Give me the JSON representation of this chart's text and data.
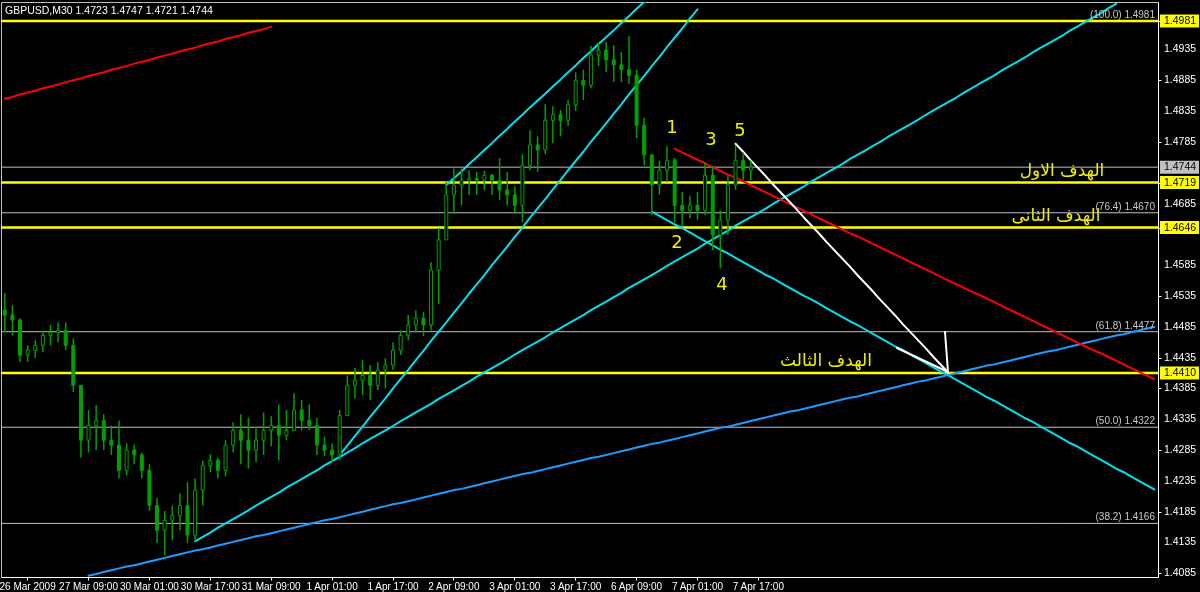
{
  "chart_data": {
    "type": "candlestick",
    "title": "GBPUSD,M30 1.4723 1.4747 1.4721 1.4744",
    "color": "#00a000",
    "categories": [
      null,
      null,
      null,
      "26 Mar 2009",
      null,
      null,
      null,
      null,
      null,
      null,
      null,
      "27 Mar 09:00",
      null,
      null,
      null,
      null,
      null,
      null,
      null,
      "30 Mar 01:00",
      null,
      null,
      null,
      null,
      null,
      null,
      null,
      "30 Mar 17:00",
      null,
      null,
      null,
      null,
      null,
      null,
      null,
      "31 Mar 09:00",
      null,
      null,
      null,
      null,
      null,
      null,
      null,
      "1 Apr 01:00",
      null,
      null,
      null,
      null,
      null,
      null,
      null,
      "1 Apr 17:00",
      null,
      null,
      null,
      null,
      null,
      null,
      null,
      "2 Apr 09:00",
      null,
      null,
      null,
      null,
      null,
      null,
      null,
      "3 Apr 01:00",
      null,
      null,
      null,
      null,
      null,
      null,
      null,
      "3 Apr 17:00",
      null,
      null,
      null,
      null,
      null,
      null,
      null,
      "6 Apr 09:00",
      null,
      null,
      null,
      null,
      null,
      null,
      null,
      "7 Apr 01:00",
      null,
      null,
      null,
      null,
      null,
      null,
      null,
      "7 Apr 17:00",
      null,
      null,
      null,
      null,
      null,
      null,
      null,
      null,
      null,
      null,
      null,
      null,
      null,
      null,
      null,
      null,
      null,
      null,
      null,
      null,
      null,
      null,
      null,
      null,
      null,
      null,
      null,
      null,
      null,
      null,
      null,
      null,
      null,
      null,
      null,
      null,
      null,
      null,
      null,
      null,
      null,
      null,
      null,
      null,
      null,
      null,
      null,
      null,
      null,
      null,
      null,
      null
    ],
    "ylim": [
      1.4079,
      1.5012
    ],
    "yticks": [
      1.4085,
      1.4135,
      1.4185,
      1.4235,
      1.4285,
      1.4335,
      1.4385,
      {
        "value": 1.441,
        "label": "1.4410"
      },
      1.4435,
      1.4485,
      1.4535,
      1.4585,
      1.4646,
      1.4685,
      1.4719,
      1.4744,
      1.4785,
      1.4835,
      1.4885,
      1.4935,
      1.4981
    ],
    "ohlc": [
      [
        1.4512,
        1.454,
        1.4476,
        1.4504
      ],
      [
        1.4504,
        1.452,
        1.4471,
        1.4496
      ],
      [
        1.4496,
        1.4499,
        1.4428,
        1.4439
      ],
      [
        1.4439,
        1.4455,
        1.4428,
        1.4447
      ],
      [
        1.4447,
        1.4463,
        1.4434,
        1.4455
      ],
      [
        1.4455,
        1.4479,
        1.4444,
        1.4471
      ],
      [
        1.4471,
        1.4488,
        1.4455,
        1.4476
      ],
      [
        1.4476,
        1.4492,
        1.446,
        1.4479
      ],
      [
        1.4479,
        1.4492,
        1.4447,
        1.4455
      ],
      [
        1.4455,
        1.4466,
        1.4379,
        1.439
      ],
      [
        1.439,
        1.439,
        1.4273,
        1.4301
      ],
      [
        1.4301,
        1.435,
        1.4281,
        1.4325
      ],
      [
        1.4325,
        1.4358,
        1.4285,
        1.4333
      ],
      [
        1.4333,
        1.4343,
        1.4285,
        1.4301
      ],
      [
        1.4301,
        1.4325,
        1.4277,
        1.4293
      ],
      [
        1.4293,
        1.4333,
        1.4239,
        1.4252
      ],
      [
        1.4252,
        1.4296,
        1.4244,
        1.4285
      ],
      [
        1.4285,
        1.4294,
        1.4262,
        1.4277
      ],
      [
        1.4277,
        1.4281,
        1.4239,
        1.4252
      ],
      [
        1.4252,
        1.4262,
        1.4186,
        1.4195
      ],
      [
        1.4195,
        1.4207,
        1.4134,
        1.4155
      ],
      [
        1.4155,
        1.4186,
        1.4114,
        1.4171
      ],
      [
        1.4171,
        1.4195,
        1.4139,
        1.4179
      ],
      [
        1.4179,
        1.4215,
        1.4155,
        1.4195
      ],
      [
        1.4195,
        1.4233,
        1.4134,
        1.4147
      ],
      [
        1.4147,
        1.4239,
        1.4137,
        1.422
      ],
      [
        1.422,
        1.4268,
        1.4195,
        1.426
      ],
      [
        1.426,
        1.4278,
        1.4249,
        1.4268
      ],
      [
        1.4268,
        1.4272,
        1.4239,
        1.4252
      ],
      [
        1.4252,
        1.4301,
        1.4242,
        1.4293
      ],
      [
        1.4293,
        1.433,
        1.4281,
        1.4317
      ],
      [
        1.4317,
        1.4343,
        1.4262,
        1.4301
      ],
      [
        1.4301,
        1.4337,
        1.4255,
        1.4285
      ],
      [
        1.4285,
        1.432,
        1.4265,
        1.4301
      ],
      [
        1.4301,
        1.4346,
        1.4277,
        1.4317
      ],
      [
        1.4317,
        1.434,
        1.4291,
        1.4325
      ],
      [
        1.4325,
        1.4359,
        1.4268,
        1.4309
      ],
      [
        1.4309,
        1.435,
        1.4301,
        1.4317
      ],
      [
        1.4317,
        1.4377,
        1.4317,
        1.435
      ],
      [
        1.435,
        1.4366,
        1.4317,
        1.4333
      ],
      [
        1.4333,
        1.4359,
        1.4317,
        1.4325
      ],
      [
        1.4325,
        1.4337,
        1.4277,
        1.4293
      ],
      [
        1.4293,
        1.4307,
        1.4275,
        1.4285
      ],
      [
        1.4285,
        1.4296,
        1.4265,
        1.4277
      ],
      [
        1.4277,
        1.435,
        1.4268,
        1.4341
      ],
      [
        1.4341,
        1.4406,
        1.4341,
        1.439
      ],
      [
        1.439,
        1.4418,
        1.4369,
        1.4398
      ],
      [
        1.4398,
        1.4431,
        1.4374,
        1.4406
      ],
      [
        1.4406,
        1.4423,
        1.4366,
        1.439
      ],
      [
        1.439,
        1.4428,
        1.4382,
        1.4415
      ],
      [
        1.4415,
        1.4434,
        1.4385,
        1.4423
      ],
      [
        1.4423,
        1.446,
        1.4415,
        1.4447
      ],
      [
        1.4447,
        1.4479,
        1.4439,
        1.4471
      ],
      [
        1.4471,
        1.4504,
        1.4463,
        1.4488
      ],
      [
        1.4488,
        1.4512,
        1.4476,
        1.4499
      ],
      [
        1.4499,
        1.4509,
        1.447,
        1.4488
      ],
      [
        1.4488,
        1.459,
        1.4479,
        1.4577
      ],
      [
        1.4577,
        1.4645,
        1.4522,
        1.4626
      ],
      [
        1.4626,
        1.472,
        1.4626,
        1.4699
      ],
      [
        1.4699,
        1.4742,
        1.4668,
        1.4715
      ],
      [
        1.4715,
        1.4742,
        1.4682,
        1.4723
      ],
      [
        1.4723,
        1.4739,
        1.4699,
        1.4726
      ],
      [
        1.4726,
        1.4736,
        1.4699,
        1.4723
      ],
      [
        1.4723,
        1.4738,
        1.4707,
        1.4731
      ],
      [
        1.4731,
        1.4733,
        1.4699,
        1.4723
      ],
      [
        1.4723,
        1.4759,
        1.4691,
        1.4707
      ],
      [
        1.4707,
        1.4736,
        1.4682,
        1.4699
      ],
      [
        1.4699,
        1.4713,
        1.4668,
        1.4682
      ],
      [
        1.4682,
        1.4765,
        1.4655,
        1.4747
      ],
      [
        1.4747,
        1.4804,
        1.4739,
        1.478
      ],
      [
        1.478,
        1.4794,
        1.4736,
        1.4772
      ],
      [
        1.4772,
        1.4846,
        1.4765,
        1.482
      ],
      [
        1.482,
        1.4843,
        1.4783,
        1.4829
      ],
      [
        1.4829,
        1.4837,
        1.4794,
        1.482
      ],
      [
        1.482,
        1.4853,
        1.4811,
        1.4845
      ],
      [
        1.4845,
        1.4898,
        1.4835,
        1.4885
      ],
      [
        1.4885,
        1.4902,
        1.4853,
        1.4877
      ],
      [
        1.4877,
        1.4941,
        1.4872,
        1.4926
      ],
      [
        1.4926,
        1.4947,
        1.4908,
        1.4934
      ],
      [
        1.4934,
        1.4947,
        1.4898,
        1.4918
      ],
      [
        1.4918,
        1.4942,
        1.4882,
        1.491
      ],
      [
        1.491,
        1.4931,
        1.4882,
        1.4902
      ],
      [
        1.4902,
        1.4957,
        1.4879,
        1.4893
      ],
      [
        1.4893,
        1.4902,
        1.4791,
        1.4812
      ],
      [
        1.4812,
        1.4824,
        1.4747,
        1.4764
      ],
      [
        1.4764,
        1.4765,
        1.4666,
        1.4715
      ],
      [
        1.4715,
        1.4755,
        1.4699,
        1.4739
      ],
      [
        1.4739,
        1.4778,
        1.472,
        1.4755
      ],
      [
        1.4755,
        1.4759,
        1.4655,
        1.4682
      ],
      [
        1.4682,
        1.4704,
        1.4648,
        1.4674
      ],
      [
        1.4674,
        1.4697,
        1.4661,
        1.4682
      ],
      [
        1.4682,
        1.4704,
        1.4658,
        1.4674
      ],
      [
        1.4674,
        1.4752,
        1.4666,
        1.4731
      ],
      [
        1.4731,
        1.4746,
        1.4609,
        1.4634
      ],
      [
        1.4634,
        1.4674,
        1.458,
        1.4658
      ],
      [
        1.4658,
        1.4731,
        1.4634,
        1.4715
      ],
      [
        1.4715,
        1.478,
        1.4707,
        1.4755
      ],
      [
        1.4755,
        1.4768,
        1.4723,
        1.4739
      ],
      [
        1.4739,
        1.4755,
        1.4723,
        1.4744
      ],
      null,
      null,
      null,
      null,
      null,
      null,
      null,
      null,
      null,
      null,
      null,
      null,
      null,
      null,
      null,
      null,
      null,
      null,
      null,
      null,
      null,
      null,
      null,
      null,
      null,
      null,
      null,
      null,
      null,
      null,
      null,
      null,
      null,
      null,
      null,
      null,
      null,
      null,
      null,
      null,
      null,
      null,
      null,
      null,
      null,
      null,
      null,
      null,
      null,
      null,
      null,
      null,
      null
    ],
    "series": [
      {
        "type": "line",
        "color": "#ff0000",
        "values": [
          1.4855,
          1.4858,
          1.4862,
          1.4865,
          1.4868,
          1.4872,
          1.4875,
          1.4878,
          1.4882,
          1.4885,
          1.4888,
          1.4892,
          1.4895,
          1.4898,
          1.4902,
          1.4905,
          1.4908,
          1.4912,
          1.4915,
          1.4918,
          1.4922,
          1.4925,
          1.4928,
          1.4932,
          1.4935,
          1.4938,
          1.4942,
          1.4945,
          1.4948,
          1.4952,
          1.4955,
          1.4958,
          1.4962,
          1.4965,
          1.4968,
          1.4972,
          null,
          null,
          null,
          null,
          null,
          null,
          null,
          null,
          null,
          null,
          null,
          null,
          null,
          null,
          null,
          null,
          null,
          null,
          null,
          null,
          null,
          null,
          null,
          null,
          null,
          null,
          null,
          null,
          null,
          null,
          null,
          null,
          null,
          null,
          null,
          null,
          null,
          null,
          null,
          null,
          null,
          null,
          null,
          null,
          null,
          null,
          null,
          null,
          null,
          null,
          null,
          null,
          null,
          null,
          null,
          null,
          null,
          null,
          null,
          null,
          null,
          null,
          null,
          null,
          null,
          null,
          null,
          null,
          null,
          null,
          null,
          null,
          null,
          null,
          null,
          null,
          null,
          null,
          null,
          null,
          null,
          null,
          null,
          null,
          null,
          null,
          null,
          null,
          null,
          null,
          null,
          null,
          null,
          null,
          null,
          null,
          null,
          null,
          null,
          null,
          null,
          null,
          null,
          null,
          null,
          null,
          null,
          null,
          null,
          null,
          null,
          null,
          null,
          null,
          null,
          null
        ]
      },
      {
        "type": "line",
        "color": "#00e0ee",
        "values": [
          null,
          null,
          null,
          null,
          null,
          null,
          null,
          null,
          null,
          null,
          null,
          null,
          null,
          null,
          null,
          null,
          null,
          null,
          null,
          null,
          null,
          null,
          null,
          null,
          null,
          null,
          null,
          null,
          null,
          null,
          null,
          null,
          null,
          null,
          null,
          null,
          null,
          null,
          null,
          null,
          null,
          null,
          null,
          null,
          null,
          null,
          null,
          null,
          null,
          null,
          null,
          null,
          null,
          null,
          null,
          null,
          null,
          null,
          1.4715,
          1.4726,
          1.4737,
          1.4749,
          1.476,
          1.4772,
          1.4783,
          1.4795,
          1.4806,
          1.4818,
          1.4829,
          1.4841,
          1.4852,
          1.4863,
          1.4875,
          1.4886,
          1.4898,
          1.4909,
          1.4921,
          1.4932,
          1.4944,
          1.4955,
          1.4966,
          1.4978,
          1.4989,
          1.5001,
          1.5012,
          null,
          null,
          null,
          null,
          null,
          null,
          null,
          null,
          null,
          null,
          null,
          null,
          null,
          null,
          null,
          null,
          null,
          null,
          null,
          null,
          null,
          null,
          null,
          null,
          null,
          null,
          null,
          null,
          null,
          null,
          null,
          null,
          null,
          null,
          null,
          null,
          null,
          null,
          null,
          null,
          null,
          null,
          null,
          null,
          null,
          null,
          null,
          null,
          null,
          null,
          null,
          null,
          null,
          null,
          null,
          null,
          null,
          null,
          null,
          null,
          null,
          null,
          null,
          null,
          null,
          null,
          null
        ]
      },
      {
        "type": "line",
        "color": "#00e0ee",
        "values": [
          null,
          null,
          null,
          null,
          null,
          null,
          null,
          null,
          null,
          null,
          null,
          null,
          null,
          null,
          null,
          null,
          null,
          null,
          null,
          null,
          null,
          null,
          null,
          null,
          null,
          1.4137,
          1.4144,
          1.4151,
          1.4159,
          1.4166,
          1.4173,
          1.418,
          1.4187,
          1.4195,
          1.4202,
          1.4209,
          1.4216,
          1.4224,
          1.4231,
          1.4238,
          1.4245,
          1.4252,
          1.426,
          1.4267,
          1.4274,
          1.4281,
          1.4288,
          1.4296,
          1.4303,
          1.431,
          1.4317,
          1.4324,
          1.4332,
          1.4339,
          1.4346,
          1.4353,
          1.436,
          1.4368,
          1.4375,
          1.4382,
          1.4389,
          1.4396,
          1.4404,
          1.4411,
          1.4418,
          1.4425,
          1.4432,
          1.444,
          1.4447,
          1.4454,
          1.4461,
          1.4468,
          1.4476,
          1.4483,
          1.449,
          1.4497,
          1.4504,
          1.4512,
          1.4519,
          1.4526,
          1.4533,
          1.454,
          1.4548,
          1.4555,
          1.4562,
          1.4569,
          1.4576,
          1.4584,
          1.4591,
          1.4598,
          1.4605,
          1.4612,
          1.462,
          1.4627,
          1.4634,
          1.4641,
          1.4649,
          1.4656,
          1.4663,
          1.467,
          1.4677,
          1.4685,
          1.4692,
          1.4699,
          1.4706,
          1.4713,
          1.4721,
          1.4728,
          1.4735,
          1.4742,
          1.4749,
          1.4757,
          1.4764,
          1.4771,
          1.4778,
          1.4785,
          1.4793,
          1.48,
          1.4807,
          1.4814,
          1.4821,
          1.4829,
          1.4836,
          1.4843,
          1.485,
          1.4857,
          1.4865,
          1.4872,
          1.4879,
          1.4886,
          1.4893,
          1.4901,
          1.4908,
          1.4915,
          1.4922,
          1.493,
          1.4937,
          1.4944,
          1.4951,
          1.4958,
          1.4966,
          1.4973,
          1.498,
          1.4987,
          1.4994,
          1.5002,
          1.5009,
          null,
          null,
          null,
          null,
          null
        ]
      },
      {
        "type": "line",
        "color": "#00e0ee",
        "values": [
          null,
          null,
          null,
          null,
          null,
          null,
          null,
          null,
          null,
          null,
          null,
          null,
          null,
          null,
          null,
          null,
          null,
          null,
          null,
          null,
          null,
          null,
          null,
          null,
          null,
          null,
          null,
          null,
          null,
          null,
          null,
          null,
          null,
          null,
          null,
          null,
          null,
          null,
          null,
          null,
          null,
          null,
          null,
          null,
          1.4277,
          1.4292,
          1.4308,
          1.4323,
          1.4339,
          1.4354,
          1.4369,
          1.4385,
          1.44,
          1.4415,
          1.4431,
          1.4446,
          1.4462,
          1.4477,
          1.4492,
          1.4508,
          1.4523,
          1.4539,
          1.4554,
          1.4569,
          1.4585,
          1.46,
          1.4615,
          1.4631,
          1.4646,
          1.4662,
          1.4677,
          1.4692,
          1.4708,
          1.4723,
          1.4739,
          1.4754,
          1.4769,
          1.4785,
          1.48,
          1.4815,
          1.4831,
          1.4846,
          1.4862,
          1.4877,
          1.4892,
          1.4908,
          1.4923,
          1.4939,
          1.4954,
          1.4969,
          1.4985,
          1.5,
          null,
          null,
          null,
          null,
          null,
          null,
          null,
          null,
          null,
          null,
          null,
          null,
          null,
          null,
          null,
          null,
          null,
          null,
          null,
          null,
          null,
          null,
          null,
          null,
          null,
          null,
          null,
          null,
          null,
          null,
          null,
          null,
          null,
          null,
          null,
          null,
          null,
          null,
          null,
          null,
          null,
          null,
          null,
          null,
          null,
          null,
          null,
          null,
          null,
          null,
          null,
          null,
          null,
          null,
          null,
          null,
          null,
          null,
          null,
          null
        ]
      },
      {
        "type": "line",
        "color": "#00e0ee",
        "values": [
          null,
          null,
          null,
          null,
          null,
          null,
          null,
          null,
          null,
          null,
          null,
          null,
          null,
          null,
          null,
          null,
          null,
          null,
          null,
          null,
          null,
          null,
          null,
          null,
          null,
          null,
          null,
          null,
          null,
          null,
          null,
          null,
          null,
          null,
          null,
          null,
          null,
          null,
          null,
          null,
          null,
          null,
          null,
          null,
          null,
          null,
          null,
          null,
          null,
          null,
          null,
          null,
          null,
          null,
          null,
          null,
          null,
          null,
          null,
          null,
          null,
          null,
          null,
          null,
          null,
          null,
          null,
          null,
          null,
          null,
          null,
          null,
          null,
          null,
          null,
          null,
          null,
          null,
          null,
          null,
          null,
          null,
          null,
          null,
          null,
          1.4672,
          1.4665,
          1.4658,
          1.4651,
          1.4645,
          1.4638,
          1.4631,
          1.4624,
          1.4617,
          1.461,
          1.4604,
          1.4597,
          1.459,
          1.4583,
          1.4576,
          1.4569,
          1.4563,
          1.4556,
          1.4549,
          1.4542,
          1.4535,
          1.4529,
          1.4522,
          1.4515,
          1.4508,
          1.4501,
          1.4494,
          1.4488,
          1.4481,
          1.4474,
          1.4467,
          1.446,
          1.4453,
          1.4447,
          1.444,
          1.4433,
          1.4426,
          1.4419,
          1.4412,
          1.4406,
          1.4399,
          1.4392,
          1.4385,
          1.4378,
          1.4371,
          1.4365,
          1.4358,
          1.4351,
          1.4344,
          1.4337,
          1.4331,
          1.4324,
          1.4317,
          1.431,
          1.4303,
          1.4296,
          1.429,
          1.4283,
          1.4276,
          1.4269,
          1.4262,
          1.4255,
          1.4249,
          1.4242,
          1.4235,
          1.4228,
          1.4221
        ]
      },
      {
        "type": "line",
        "color": "#1e9bff",
        "values": [
          null,
          null,
          null,
          null,
          null,
          null,
          null,
          null,
          null,
          null,
          null,
          1.4081,
          1.4084,
          1.4087,
          1.409,
          1.4093,
          1.4096,
          1.4098,
          1.4101,
          1.4104,
          1.4107,
          1.411,
          1.4113,
          1.4116,
          1.4119,
          1.4122,
          1.4124,
          1.4127,
          1.413,
          1.4133,
          1.4136,
          1.4139,
          1.4142,
          1.4145,
          1.4147,
          1.415,
          1.4153,
          1.4156,
          1.4159,
          1.4162,
          1.4165,
          1.4168,
          1.4171,
          1.4173,
          1.4176,
          1.4179,
          1.4182,
          1.4185,
          1.4188,
          1.4191,
          1.4194,
          1.4197,
          1.4199,
          1.4202,
          1.4205,
          1.4208,
          1.4211,
          1.4214,
          1.4217,
          1.422,
          1.4222,
          1.4225,
          1.4228,
          1.4231,
          1.4234,
          1.4237,
          1.424,
          1.4243,
          1.4246,
          1.4248,
          1.4251,
          1.4254,
          1.4257,
          1.426,
          1.4263,
          1.4266,
          1.4269,
          1.4272,
          1.4274,
          1.4277,
          1.428,
          1.4283,
          1.4286,
          1.4289,
          1.4292,
          1.4295,
          1.4297,
          1.43,
          1.4303,
          1.4306,
          1.4309,
          1.4312,
          1.4315,
          1.4318,
          1.4321,
          1.4323,
          1.4326,
          1.4329,
          1.4332,
          1.4335,
          1.4338,
          1.4341,
          1.4344,
          1.4347,
          1.4349,
          1.4352,
          1.4355,
          1.4358,
          1.4361,
          1.4364,
          1.4367,
          1.437,
          1.4372,
          1.4375,
          1.4378,
          1.4381,
          1.4384,
          1.4387,
          1.439,
          1.4393,
          1.4396,
          1.4398,
          1.4401,
          1.4404,
          1.4407,
          1.441,
          1.4413,
          1.4416,
          1.4419,
          1.4422,
          1.4424,
          1.4427,
          1.443,
          1.4433,
          1.4436,
          1.4439,
          1.4442,
          1.4445,
          1.4447,
          1.445,
          1.4453,
          1.4456,
          1.4459,
          1.4462,
          1.4465,
          1.4468,
          1.4471,
          1.4473,
          1.4476,
          1.4479,
          1.4482,
          1.4485
        ]
      },
      {
        "type": "line",
        "color": "#ff0000",
        "values": [
          null,
          null,
          null,
          null,
          null,
          null,
          null,
          null,
          null,
          null,
          null,
          null,
          null,
          null,
          null,
          null,
          null,
          null,
          null,
          null,
          null,
          null,
          null,
          null,
          null,
          null,
          null,
          null,
          null,
          null,
          null,
          null,
          null,
          null,
          null,
          null,
          null,
          null,
          null,
          null,
          null,
          null,
          null,
          null,
          null,
          null,
          null,
          null,
          null,
          null,
          null,
          null,
          null,
          null,
          null,
          null,
          null,
          null,
          null,
          null,
          null,
          null,
          null,
          null,
          null,
          null,
          null,
          null,
          null,
          null,
          null,
          null,
          null,
          null,
          null,
          null,
          null,
          null,
          null,
          null,
          null,
          null,
          null,
          null,
          null,
          null,
          null,
          null,
          1.4774,
          1.4768,
          1.4762,
          1.4756,
          1.475,
          1.4744,
          1.4738,
          1.4732,
          1.4727,
          1.4721,
          1.4715,
          1.4709,
          1.4703,
          1.4697,
          1.4691,
          1.4685,
          1.4679,
          1.4673,
          1.4667,
          1.4661,
          1.4655,
          1.4649,
          1.4643,
          1.4637,
          1.4632,
          1.4626,
          1.462,
          1.4614,
          1.4608,
          1.4602,
          1.4596,
          1.459,
          1.4584,
          1.4578,
          1.4572,
          1.4566,
          1.456,
          1.4554,
          1.4548,
          1.4542,
          1.4537,
          1.4531,
          1.4525,
          1.4519,
          1.4513,
          1.4507,
          1.4501,
          1.4495,
          1.4489,
          1.4483,
          1.4477,
          1.4471,
          1.4465,
          1.4459,
          1.4453,
          1.4447,
          1.4442,
          1.4436,
          1.443,
          1.4424,
          1.4418,
          1.4412,
          1.4406,
          1.44
        ]
      },
      {
        "type": "line",
        "color": "#ffffff",
        "values": [
          null,
          null,
          null,
          null,
          null,
          null,
          null,
          null,
          null,
          null,
          null,
          null,
          null,
          null,
          null,
          null,
          null,
          null,
          null,
          null,
          null,
          null,
          null,
          null,
          null,
          null,
          null,
          null,
          null,
          null,
          null,
          null,
          null,
          null,
          null,
          null,
          null,
          null,
          null,
          null,
          null,
          null,
          null,
          null,
          null,
          null,
          null,
          null,
          null,
          null,
          null,
          null,
          null,
          null,
          null,
          null,
          null,
          null,
          null,
          null,
          null,
          null,
          null,
          null,
          null,
          null,
          null,
          null,
          null,
          null,
          null,
          null,
          null,
          null,
          null,
          null,
          null,
          null,
          null,
          null,
          null,
          null,
          null,
          null,
          null,
          null,
          null,
          null,
          null,
          null,
          null,
          null,
          null,
          null,
          null,
          null,
          1.4782,
          1.4769,
          1.4755,
          1.4742,
          1.4729,
          1.4715,
          1.4702,
          1.4689,
          1.4676,
          1.4662,
          1.4649,
          1.4636,
          1.4622,
          1.4609,
          1.4596,
          1.4583,
          1.4569,
          1.4556,
          1.4543,
          1.4529,
          1.4516,
          1.4503,
          1.4489,
          1.4476,
          1.4463,
          1.445,
          1.4436,
          1.4423,
          1.441,
          null,
          null,
          null,
          null,
          null,
          null,
          null,
          null,
          null,
          null,
          null,
          null,
          null,
          null,
          null,
          null,
          null,
          null,
          null,
          null,
          null,
          null,
          null,
          null,
          null,
          null,
          null
        ]
      }
    ],
    "ref_lines": [
      {
        "axis": "y",
        "value": 1.4981,
        "label": "(100.0) 1.4981",
        "color": "#ffff00"
      },
      {
        "axis": "y",
        "value": 1.4719,
        "label": null,
        "color": "#ffff00"
      },
      {
        "axis": "y",
        "value": 1.4646,
        "label": null,
        "color": "#ffff00"
      },
      {
        "axis": "y",
        "value": 1.441,
        "label": null,
        "color": "#ffff00"
      },
      {
        "axis": "y",
        "value": 1.4744,
        "label": null,
        "color": "#c0c0c0"
      },
      {
        "axis": "y",
        "value": 1.467,
        "label": "(76.4) 1.4670",
        "color": "#c0c0c0"
      },
      {
        "axis": "y",
        "value": 1.4477,
        "label": "(61.8) 1.4477",
        "color": "#c0c0c0"
      },
      {
        "axis": "y",
        "value": 1.4322,
        "label": "(50.0) 1.4322",
        "color": "#c0c0c0"
      },
      {
        "axis": "y",
        "value": 1.4166,
        "label": "(38.2) 1.4166",
        "color": "#c0c0c0"
      }
    ],
    "annotations": [
      "1",
      "2",
      "3",
      "4",
      "5",
      {
        "text": "الهدف الاول",
        "y": 1.4719
      },
      {
        "text": "الهدف الثانى",
        "y": 1.4646
      },
      {
        "text": "الهدف الثالث",
        "y": 1.441
      }
    ]
  }
}
